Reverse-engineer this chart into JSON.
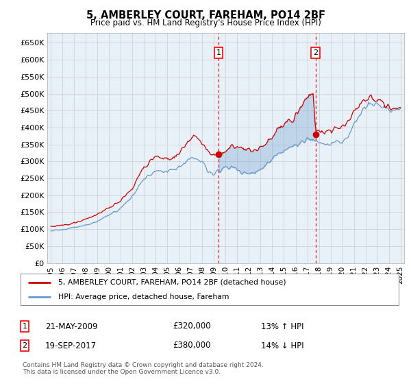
{
  "title": "5, AMBERLEY COURT, FAREHAM, PO14 2BF",
  "subtitle": "Price paid vs. HM Land Registry's House Price Index (HPI)",
  "background_color": "#ffffff",
  "plot_bg_color": "#e8f0f8",
  "grid_color": "#cccccc",
  "ylim": [
    0,
    680000
  ],
  "yticks": [
    0,
    50000,
    100000,
    150000,
    200000,
    250000,
    300000,
    350000,
    400000,
    450000,
    500000,
    550000,
    600000,
    650000
  ],
  "ytick_labels": [
    "£0",
    "£50K",
    "£100K",
    "£150K",
    "£200K",
    "£250K",
    "£300K",
    "£350K",
    "£400K",
    "£450K",
    "£500K",
    "£550K",
    "£600K",
    "£650K"
  ],
  "hpi_color": "#6699cc",
  "price_color": "#cc0000",
  "marker1_x": 2009.38,
  "marker2_x": 2017.72,
  "marker1_price": 320000,
  "marker2_price": 380000,
  "legend_entry1": "5, AMBERLEY COURT, FAREHAM, PO14 2BF (detached house)",
  "legend_entry2": "HPI: Average price, detached house, Fareham",
  "footer": "Contains HM Land Registry data © Crown copyright and database right 2024.\nThis data is licensed under the Open Government Licence v3.0.",
  "xlim_left": 1994.7,
  "xlim_right": 2025.3
}
